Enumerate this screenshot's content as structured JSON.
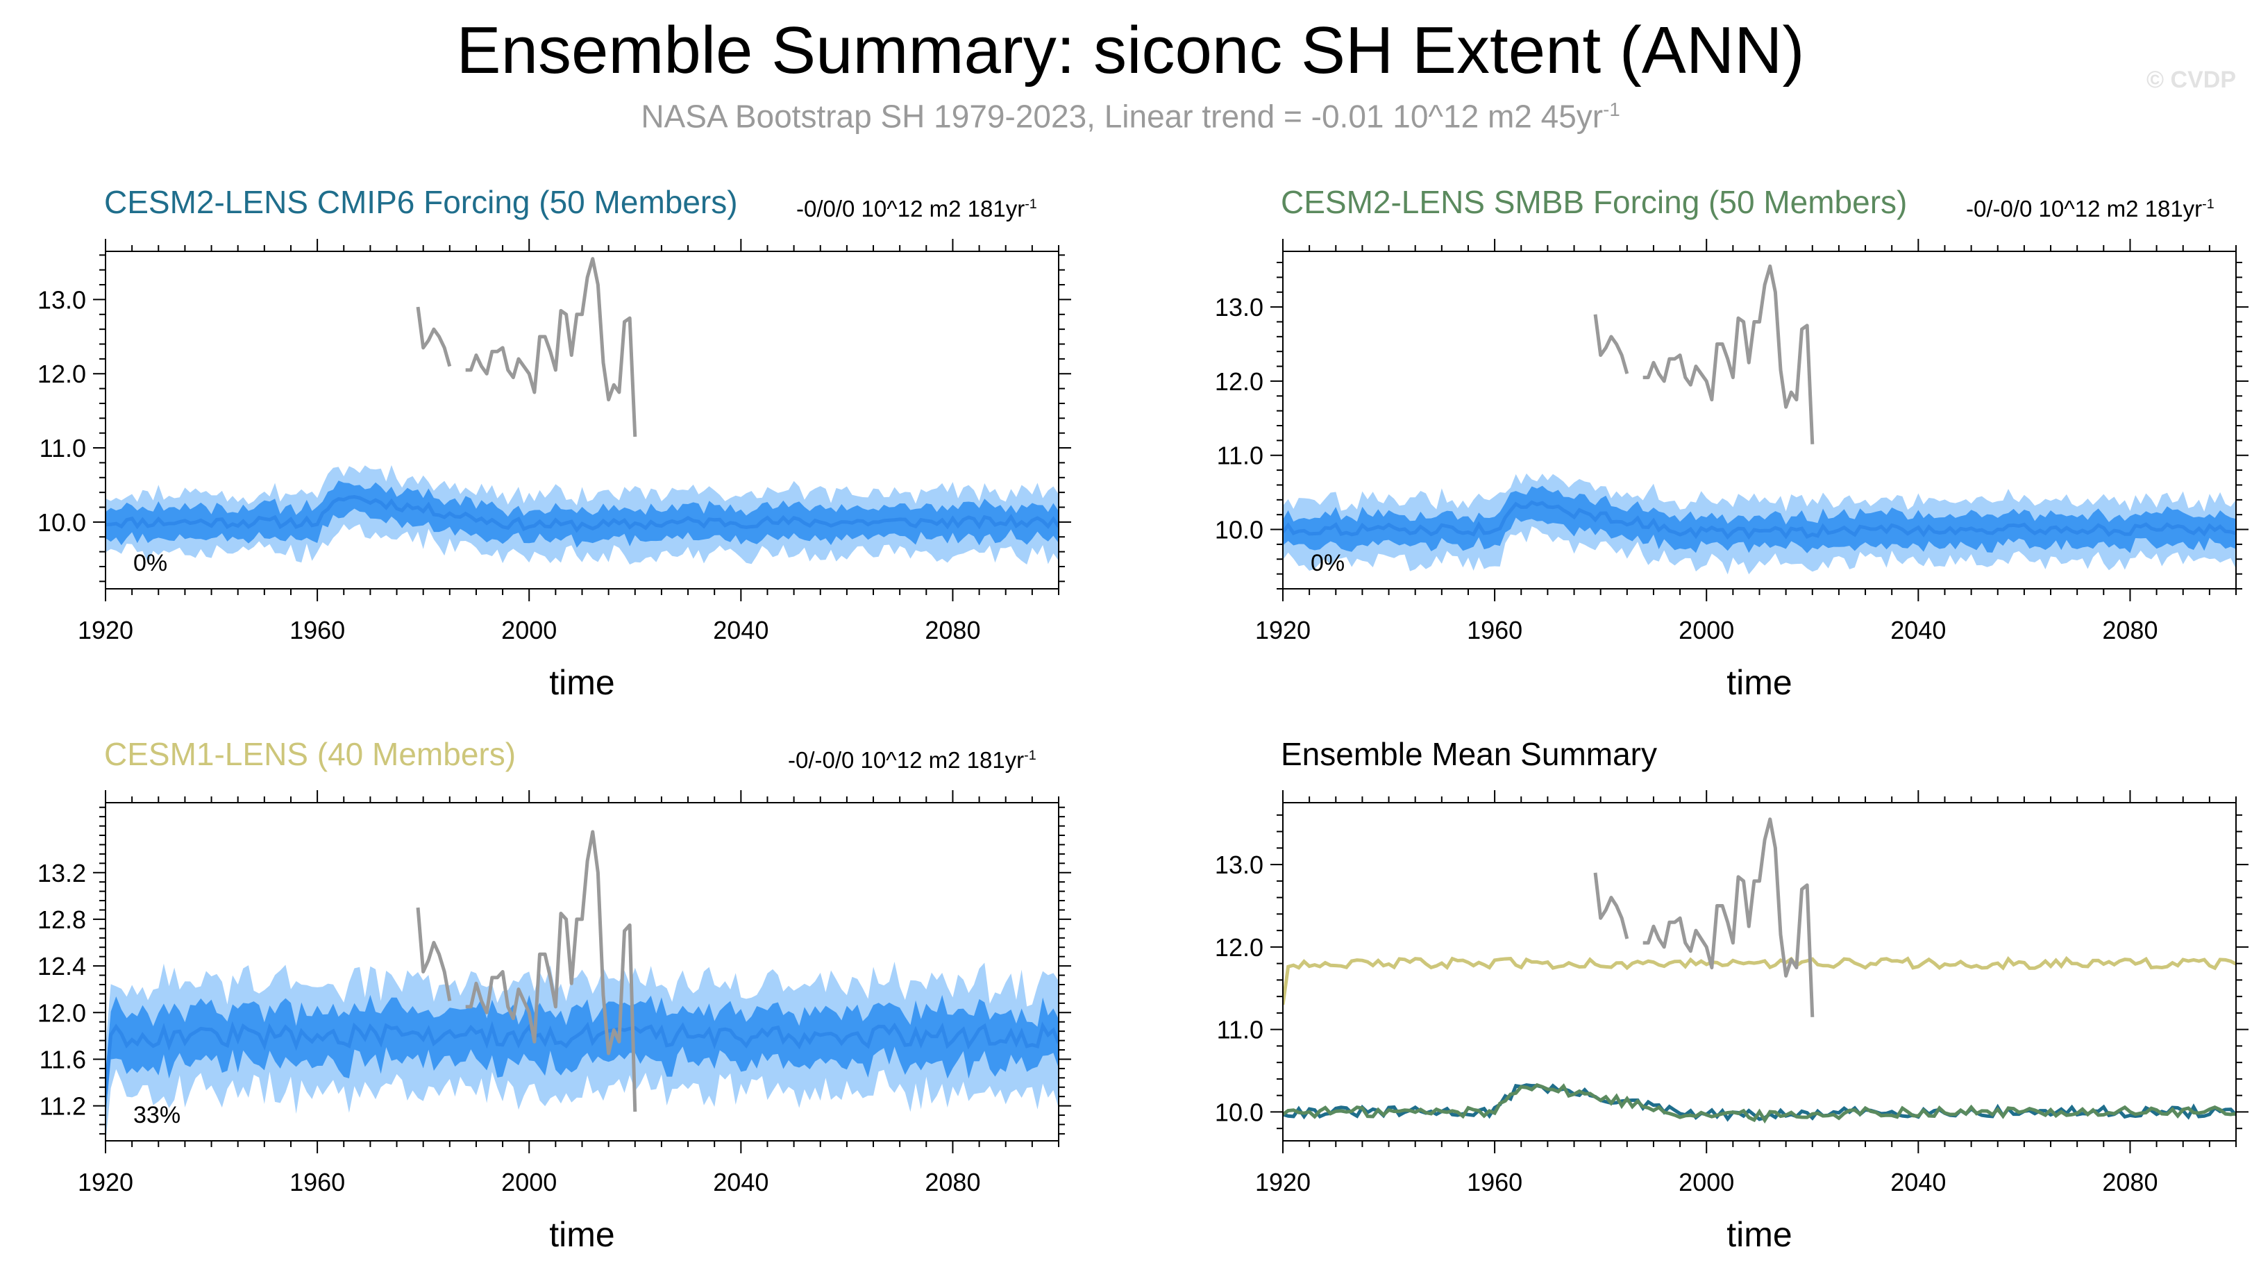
{
  "header": {
    "title": "Ensemble Summary: siconc SH Extent (ANN)",
    "subtitle": "NASA Bootstrap SH 1979-2023, Linear trend = -0.01 10^12 m2 45yr",
    "subtitle_sup": "-1",
    "watermark": "© CVDP"
  },
  "colors": {
    "cmip6": "#1f6e8c",
    "smbb": "#5b8a5e",
    "cesm1": "#cdc67a",
    "band_outer": "#a6d1fb",
    "band_inner": "#3d97f2",
    "mean_line": "#2f88ea",
    "obs": "#999999",
    "mean_panel_title": "#000000"
  },
  "chart_data": [
    {
      "id": "cmip6",
      "type": "line",
      "title": "CESM2-LENS CMIP6 Forcing (50 Members)",
      "trend": "-0/0/0 10^12 m2 181yr",
      "trend_sup": "-1",
      "xlabel": "time",
      "ylabel": "",
      "xlim": [
        1920,
        2100
      ],
      "ylim": [
        9.1,
        13.65
      ],
      "xticks": [
        1920,
        1960,
        2000,
        2040,
        2080
      ],
      "yticks": [
        10.0,
        11.0,
        12.0,
        13.0
      ],
      "ytick_labels": [
        "10.0",
        "11.0",
        "12.0",
        "13.0"
      ],
      "annotation": "0%",
      "ensemble": {
        "base": 10.0,
        "offset": 0.0,
        "bump": 0.35,
        "wiggle": 0.07,
        "inner": 0.2,
        "outer": 0.4,
        "first": null
      }
    },
    {
      "id": "smbb",
      "type": "line",
      "title": "CESM2-LENS SMBB Forcing (50 Members)",
      "trend": "-0/-0/0 10^12 m2 181yr",
      "trend_sup": "-1",
      "xlabel": "time",
      "ylabel": "",
      "xlim": [
        1920,
        2100
      ],
      "ylim": [
        9.2,
        13.75
      ],
      "xticks": [
        1920,
        1960,
        2000,
        2040,
        2080
      ],
      "yticks": [
        10.0,
        11.0,
        12.0,
        13.0
      ],
      "ytick_labels": [
        "10.0",
        "11.0",
        "12.0",
        "13.0"
      ],
      "annotation": "0%",
      "ensemble": {
        "base": 10.0,
        "offset": 0.0,
        "bump": 0.35,
        "wiggle": 0.07,
        "inner": 0.2,
        "outer": 0.4,
        "first": null
      }
    },
    {
      "id": "cesm1",
      "type": "line",
      "title": "CESM1-LENS (40 Members)",
      "trend": "-0/-0/0 10^12 m2 181yr",
      "trend_sup": "-1",
      "xlabel": "time",
      "ylabel": "",
      "xlim": [
        1920,
        2100
      ],
      "ylim": [
        10.9,
        13.8
      ],
      "xticks": [
        1920,
        1960,
        2000,
        2040,
        2080
      ],
      "yticks": [
        11.2,
        11.6,
        12.0,
        12.4,
        12.8,
        13.2
      ],
      "ytick_labels": [
        "11.2",
        "11.6",
        "12.0",
        "12.4",
        "12.8",
        "13.2"
      ],
      "annotation": "33%",
      "ensemble": {
        "base": 10.0,
        "offset": 1.8,
        "bump": 0.0,
        "wiggle": 0.09,
        "inner": 0.22,
        "outer": 0.45,
        "first": 11.3
      }
    },
    {
      "id": "mean",
      "type": "line",
      "title": "Ensemble Mean Summary",
      "trend": "",
      "trend_sup": "",
      "xlabel": "time",
      "ylabel": "",
      "xlim": [
        1920,
        2100
      ],
      "ylim": [
        9.65,
        13.75
      ],
      "xticks": [
        1920,
        1960,
        2000,
        2040,
        2080
      ],
      "yticks": [
        10.0,
        11.0,
        12.0,
        13.0
      ],
      "ytick_labels": [
        "10.0",
        "11.0",
        "12.0",
        "13.0"
      ],
      "annotation": "",
      "series": [
        {
          "name": "CESM2-LENS CMIP6 Forcing",
          "color": "#1f6e8c",
          "offset": 0.0,
          "bump": 0.35,
          "first": null
        },
        {
          "name": "CESM2-LENS SMBB Forcing",
          "color": "#5b8a5e",
          "offset": 0.0,
          "bump": 0.35,
          "first": null
        },
        {
          "name": "CESM1-LENS",
          "color": "#cdc67a",
          "offset": 1.8,
          "bump": 0.0,
          "first": 11.3
        }
      ]
    }
  ],
  "observations": {
    "name": "NASA Bootstrap SH",
    "x": [
      1979,
      1980,
      1981,
      1982,
      1983,
      1984,
      1985,
      1986,
      1987,
      1988,
      1989,
      1990,
      1991,
      1992,
      1993,
      1994,
      1995,
      1996,
      1997,
      1998,
      1999,
      2000,
      2001,
      2002,
      2003,
      2004,
      2005,
      2006,
      2007,
      2008,
      2009,
      2010,
      2011,
      2012,
      2013,
      2014,
      2015,
      2016,
      2017,
      2018,
      2019,
      2020,
      2021,
      2022,
      2023
    ],
    "y": [
      12.9,
      12.35,
      12.45,
      12.6,
      12.5,
      12.35,
      12.1,
      null,
      null,
      12.05,
      12.05,
      12.25,
      12.1,
      12.0,
      12.3,
      12.3,
      12.35,
      12.05,
      11.95,
      12.2,
      12.1,
      12.0,
      11.75,
      12.5,
      12.5,
      12.3,
      12.05,
      12.85,
      12.8,
      12.25,
      12.8,
      12.8,
      13.3,
      13.55,
      13.2,
      12.15,
      11.65,
      11.85,
      11.75,
      12.7,
      12.75,
      11.15,
      null,
      null,
      null
    ]
  }
}
